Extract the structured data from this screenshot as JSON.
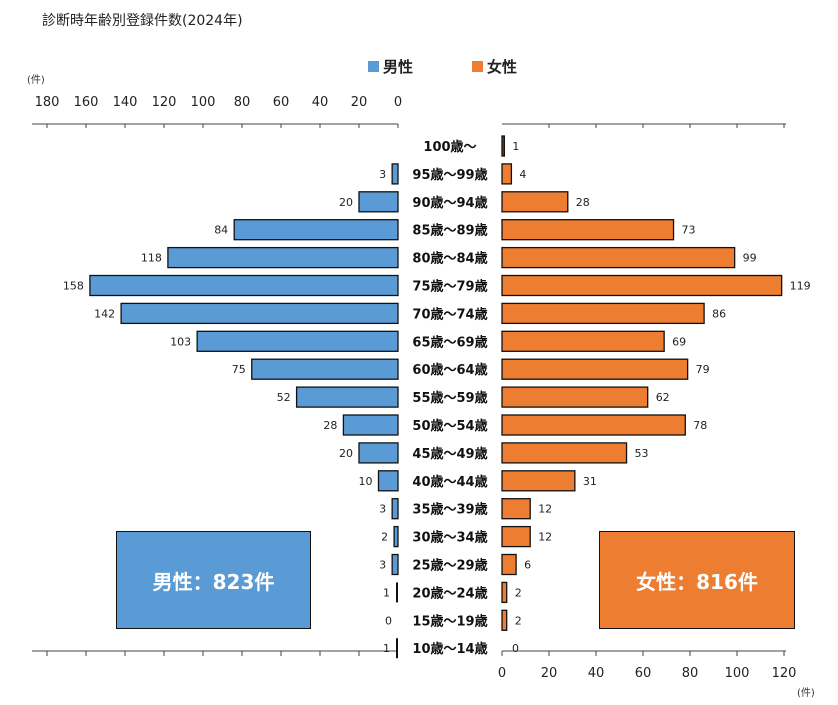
{
  "title": "診断時年齢別登録件数(2024年)",
  "legend": [
    {
      "name": "男性",
      "color": "#5b9bd5"
    },
    {
      "name": "女性",
      "color": "#ed7d31"
    }
  ],
  "unit_top": "(件)",
  "unit_bottom": "(件)",
  "totals": {
    "male": "男性：823件",
    "female": "女性：816件"
  },
  "chart_data": {
    "type": "bar",
    "orientation": "horizontal-pyramid",
    "categories": [
      "100歳～",
      "95歳～99歳",
      "90歳～94歳",
      "85歳～89歳",
      "80歳～84歳",
      "75歳～79歳",
      "70歳～74歳",
      "65歳～69歳",
      "60歳～64歳",
      "55歳～59歳",
      "50歳～54歳",
      "45歳～49歳",
      "40歳～44歳",
      "35歳～39歳",
      "30歳～34歳",
      "25歳～29歳",
      "20歳～24歳",
      "15歳～19歳",
      "10歳～14歳"
    ],
    "series": [
      {
        "name": "男性",
        "color": "#5b9bd5",
        "values": [
          null,
          3,
          20,
          84,
          118,
          158,
          142,
          103,
          75,
          52,
          28,
          20,
          10,
          3,
          2,
          3,
          1,
          0,
          1
        ]
      },
      {
        "name": "女性",
        "color": "#ed7d31",
        "values": [
          1,
          4,
          28,
          73,
          99,
          119,
          86,
          69,
          79,
          62,
          78,
          53,
          31,
          12,
          12,
          6,
          2,
          2,
          0
        ]
      }
    ],
    "male_axis": {
      "ticks": [
        180,
        160,
        140,
        120,
        100,
        80,
        60,
        40,
        20,
        0
      ],
      "range": [
        0,
        180
      ]
    },
    "female_axis": {
      "ticks": [
        0,
        20,
        40,
        60,
        80,
        100,
        120
      ],
      "range": [
        0,
        120
      ]
    },
    "special_colors": {
      "female_100plus": "#843c0c"
    }
  }
}
